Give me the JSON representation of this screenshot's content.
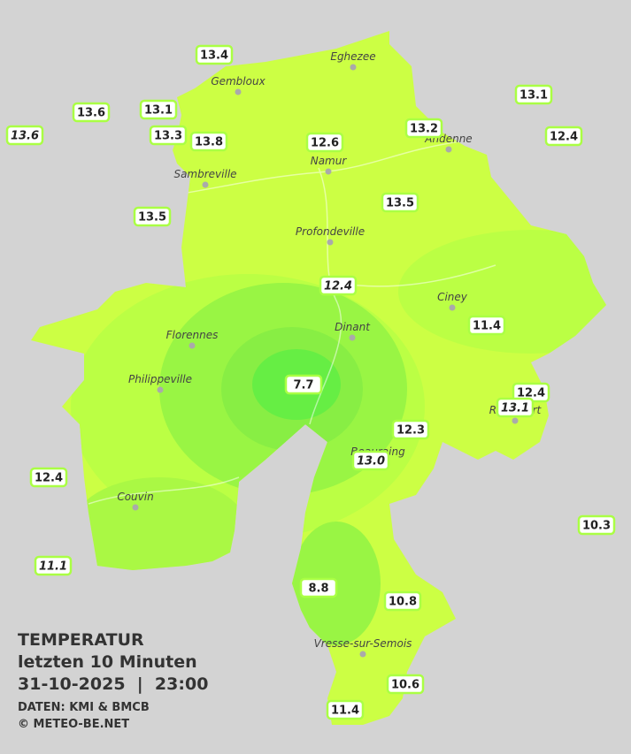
{
  "header": {
    "title": "TEMPERATUR",
    "period": "letzten 10 Minuten",
    "datetime": "31-10-2025  |  23:00",
    "source": "DATEN: KMI & BMCB",
    "copyright": "© METEO-BE.NET"
  },
  "cities": [
    {
      "name": "Eghezee"
    },
    {
      "name": "Gembloux"
    },
    {
      "name": "Andenne"
    },
    {
      "name": "Namur"
    },
    {
      "name": "Sambreville"
    },
    {
      "name": "Profondeville"
    },
    {
      "name": "Ciney"
    },
    {
      "name": "Dinant"
    },
    {
      "name": "Florennes"
    },
    {
      "name": "Philippeville"
    },
    {
      "name": "Rochefort"
    },
    {
      "name": "Beauraing"
    },
    {
      "name": "Couvin"
    },
    {
      "name": "Vresse-sur-Semois"
    }
  ],
  "stations": [
    {
      "label": "13.4",
      "italic": false
    },
    {
      "label": "13.6",
      "italic": false
    },
    {
      "label": "13.1",
      "italic": false
    },
    {
      "label": "13.3",
      "italic": false
    },
    {
      "label": "13.8",
      "italic": false
    },
    {
      "label": "13.6",
      "italic": true
    },
    {
      "label": "12.6",
      "italic": false
    },
    {
      "label": "13.2",
      "italic": false
    },
    {
      "label": "13.1",
      "italic": false
    },
    {
      "label": "12.4",
      "italic": false
    },
    {
      "label": "13.5",
      "italic": false
    },
    {
      "label": "13.5",
      "italic": false
    },
    {
      "label": "12.4",
      "italic": true
    },
    {
      "label": "11.4",
      "italic": false
    },
    {
      "label": "7.7",
      "italic": false
    },
    {
      "label": "12.4",
      "italic": false
    },
    {
      "label": "13.1",
      "italic": true
    },
    {
      "label": "12.3",
      "italic": false
    },
    {
      "label": "13.0",
      "italic": true
    },
    {
      "label": "12.4",
      "italic": false
    },
    {
      "label": "10.3",
      "italic": false
    },
    {
      "label": "11.1",
      "italic": true
    },
    {
      "label": "8.8",
      "italic": false
    },
    {
      "label": "10.8",
      "italic": false
    },
    {
      "label": "10.6",
      "italic": false
    },
    {
      "label": "11.4",
      "italic": false
    }
  ]
}
